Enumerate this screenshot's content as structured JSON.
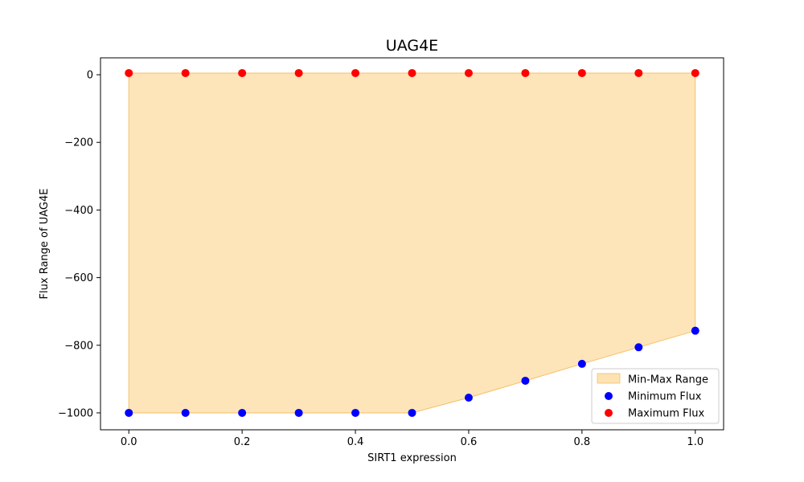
{
  "chart_data": {
    "type": "scatter",
    "title": "UAG4E",
    "xlabel": "SIRT1 expression",
    "ylabel": "Flux Range of UAG4E",
    "xlim": [
      -0.05,
      1.05
    ],
    "ylim": [
      -1050,
      50
    ],
    "x_ticks": [
      0.0,
      0.2,
      0.4,
      0.6,
      0.8,
      1.0
    ],
    "x_tick_labels": [
      "0.0",
      "0.2",
      "0.4",
      "0.6",
      "0.8",
      "1.0"
    ],
    "y_ticks": [
      0,
      -200,
      -400,
      -600,
      -800,
      -1000
    ],
    "y_tick_labels": [
      "0",
      "−200",
      "−400",
      "−600",
      "−800",
      "−1000"
    ],
    "grid": false,
    "legend_position": "lower-right",
    "x": [
      0.0,
      0.1,
      0.2,
      0.3,
      0.4,
      0.5,
      0.6,
      0.7,
      0.8,
      0.9,
      1.0
    ],
    "series": [
      {
        "name": "Min-Max Range",
        "kind": "area",
        "color": "#fcd38a",
        "lower": [
          -1000,
          -1000,
          -1000,
          -1000,
          -1000,
          -1000,
          -955,
          -905,
          -855,
          -806,
          -757
        ],
        "upper": [
          5,
          5,
          5,
          5,
          5,
          5,
          5,
          5,
          5,
          5,
          5
        ]
      },
      {
        "name": "Minimum Flux",
        "kind": "scatter",
        "color": "#0000ff",
        "values": [
          -1000,
          -1000,
          -1000,
          -1000,
          -1000,
          -1000,
          -955,
          -905,
          -855,
          -806,
          -757
        ]
      },
      {
        "name": "Maximum Flux",
        "kind": "scatter",
        "color": "#ff0000",
        "values": [
          5,
          5,
          5,
          5,
          5,
          5,
          5,
          5,
          5,
          5,
          5
        ]
      }
    ]
  }
}
